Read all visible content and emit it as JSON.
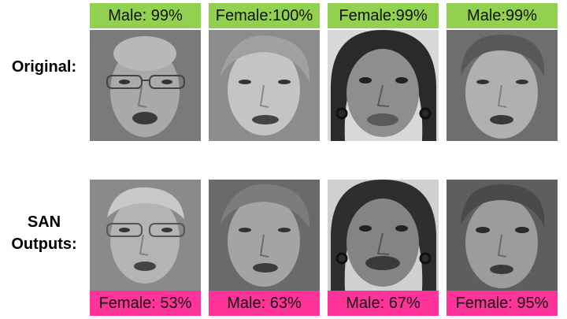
{
  "rows": {
    "original_label": "Original:",
    "san_label_line1": "SAN",
    "san_label_line2": "Outputs:"
  },
  "original_labels": [
    "Male: 99%",
    "Female:100%",
    "Female:99%",
    "Male:99%"
  ],
  "san_labels": [
    "Female: 53%",
    "Male: 63%",
    "Male: 67%",
    "Female: 95%"
  ],
  "colors": {
    "original_badge": "#92d050",
    "san_badge": "#ff3399"
  }
}
